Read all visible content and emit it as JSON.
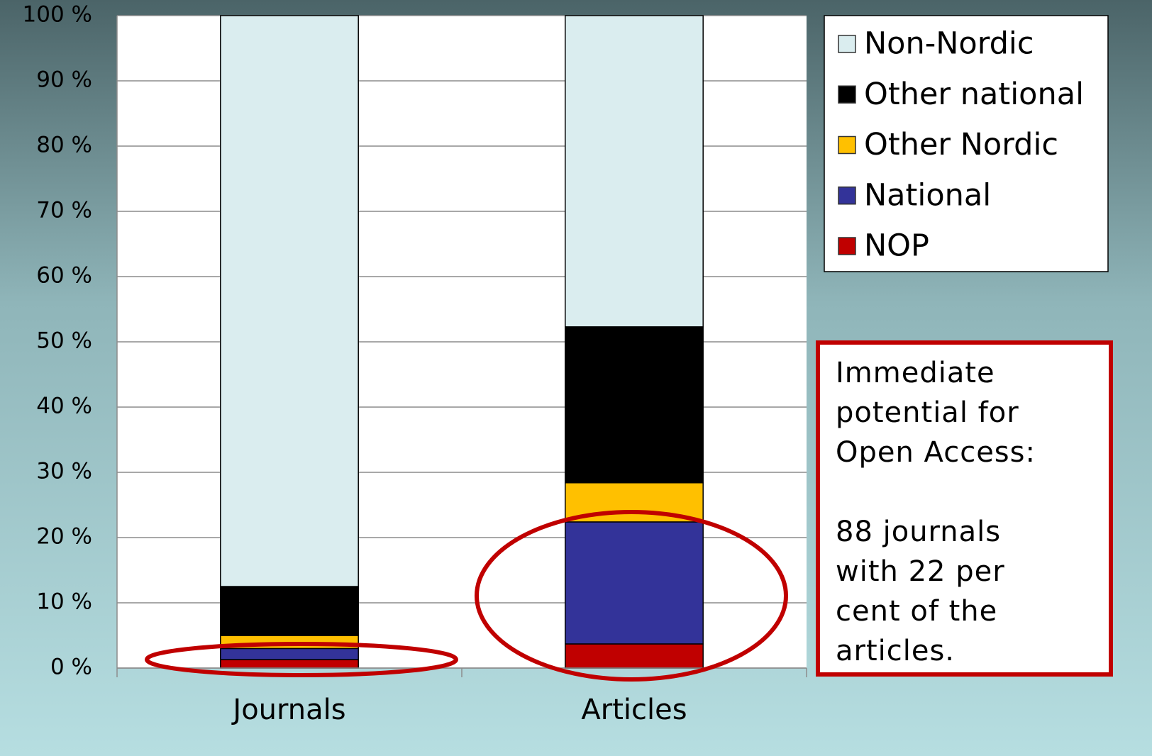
{
  "chart_data": {
    "type": "bar",
    "stacked": true,
    "categories": [
      "Journals",
      "Articles"
    ],
    "series": [
      {
        "name": "NOP",
        "color": "#c00000",
        "values": [
          1.3,
          3.7
        ]
      },
      {
        "name": "National",
        "color": "#333399",
        "values": [
          1.7,
          18.7
        ]
      },
      {
        "name": "Other Nordic",
        "color": "#ffc000",
        "values": [
          2.0,
          6.0
        ]
      },
      {
        "name": "Other national",
        "color": "#000000",
        "values": [
          7.5,
          23.9
        ]
      },
      {
        "name": "Non-Nordic",
        "color": "#daedef",
        "values": [
          87.5,
          47.7
        ]
      }
    ],
    "ylim": [
      0,
      100
    ],
    "yticks": [
      {
        "value": 0,
        "label": "0 %"
      },
      {
        "value": 10,
        "label": "10 %"
      },
      {
        "value": 20,
        "label": "20 %"
      },
      {
        "value": 30,
        "label": "30 %"
      },
      {
        "value": 40,
        "label": "40 %"
      },
      {
        "value": 50,
        "label": "50 %"
      },
      {
        "value": 60,
        "label": "60 %"
      },
      {
        "value": 70,
        "label": "70 %"
      },
      {
        "value": 80,
        "label": "80 %"
      },
      {
        "value": 90,
        "label": "90 %"
      },
      {
        "value": 100,
        "label": "100 %"
      }
    ],
    "grid": true,
    "legend": "top-right",
    "annotations": [
      "Immediate potential for Open Access:",
      "88 journals with 22 per cent of the articles."
    ]
  }
}
